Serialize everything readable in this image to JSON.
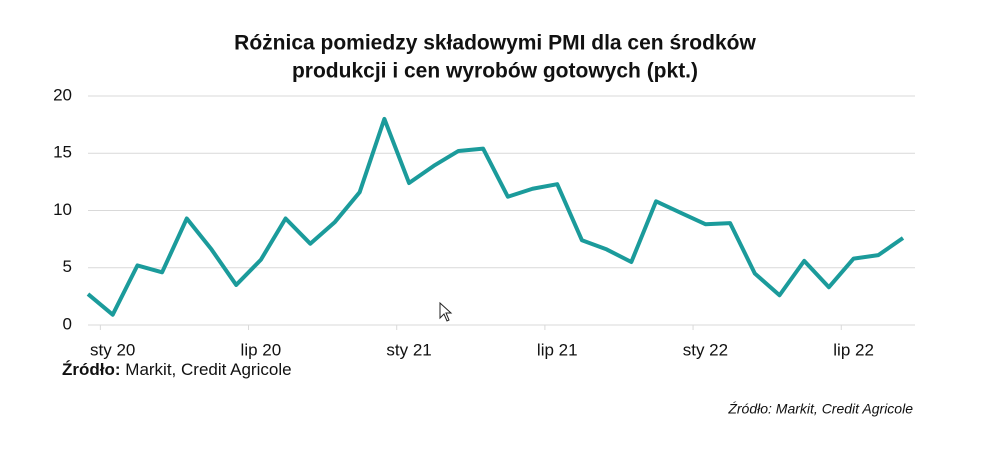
{
  "chart_data": {
    "type": "line",
    "title": [
      "Różnica pomiedzy składowymi PMI dla cen środków",
      "produkcji i cen wyrobów gotowych (pkt.)"
    ],
    "categories": [
      null,
      "sty 20",
      null,
      null,
      null,
      null,
      null,
      "lip 20",
      null,
      null,
      null,
      null,
      null,
      "sty 21",
      null,
      null,
      null,
      null,
      null,
      "lip 21",
      null,
      null,
      null,
      null,
      null,
      "sty 22",
      null,
      null,
      null,
      null,
      null,
      "lip 22",
      null,
      null
    ],
    "series": [
      {
        "name": "Różnica",
        "color": "#1b9b9b",
        "values": [
          2.7,
          0.9,
          5.2,
          4.6,
          9.3,
          6.6,
          3.5,
          5.7,
          9.3,
          7.1,
          9.0,
          11.6,
          18.0,
          12.4,
          13.9,
          15.2,
          15.4,
          11.2,
          11.9,
          12.3,
          7.4,
          6.6,
          5.5,
          10.8,
          9.8,
          8.8,
          8.9,
          4.5,
          2.6,
          5.6,
          3.3,
          5.8,
          6.1,
          7.6
        ]
      }
    ],
    "ylim": [
      0,
      20
    ],
    "yticks": [
      0,
      5,
      10,
      15,
      20
    ],
    "grid": true,
    "source": {
      "label": "Źródło:",
      "text": "Markit, Credit Agricole"
    },
    "caption": "Źródło: Markit, Credit Agricole"
  }
}
